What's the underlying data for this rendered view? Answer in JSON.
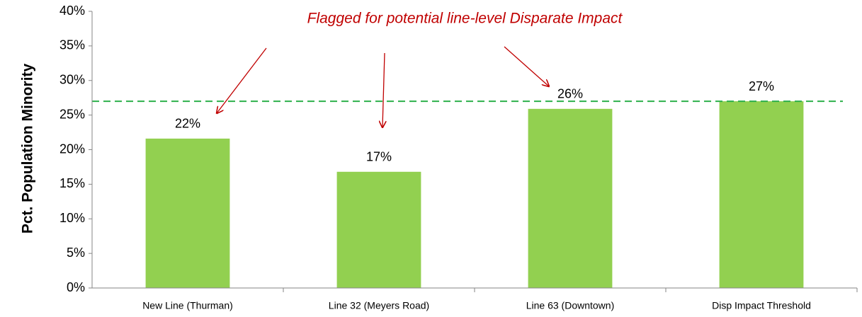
{
  "chart_data": {
    "type": "bar",
    "y_label": "Pct. Population Minority",
    "annotation": "Flagged for potential line-level Disparate Impact",
    "categories": [
      "New Line (Thurman)",
      "Line 32 (Meyers Road)",
      "Line 63 (Downtown)",
      "Disp Impact Threshold"
    ],
    "values": [
      21.6,
      16.8,
      25.9,
      27
    ],
    "value_labels": [
      "22%",
      "17%",
      "26%",
      "27%"
    ],
    "color": "#92d050",
    "ylim": [
      0,
      40
    ],
    "yticks": [
      {
        "value": 0,
        "label": "0%"
      },
      {
        "value": 5,
        "label": "5%"
      },
      {
        "value": 10,
        "label": "10%"
      },
      {
        "value": 15,
        "label": "15%"
      },
      {
        "value": 20,
        "label": "20%"
      },
      {
        "value": 25,
        "label": "25%"
      },
      {
        "value": 30,
        "label": "30%"
      },
      {
        "value": 35,
        "label": "35%"
      },
      {
        "value": 40,
        "label": "40%"
      }
    ],
    "reference_line": {
      "value": 27,
      "color": "#2db04b"
    },
    "grid": false
  }
}
